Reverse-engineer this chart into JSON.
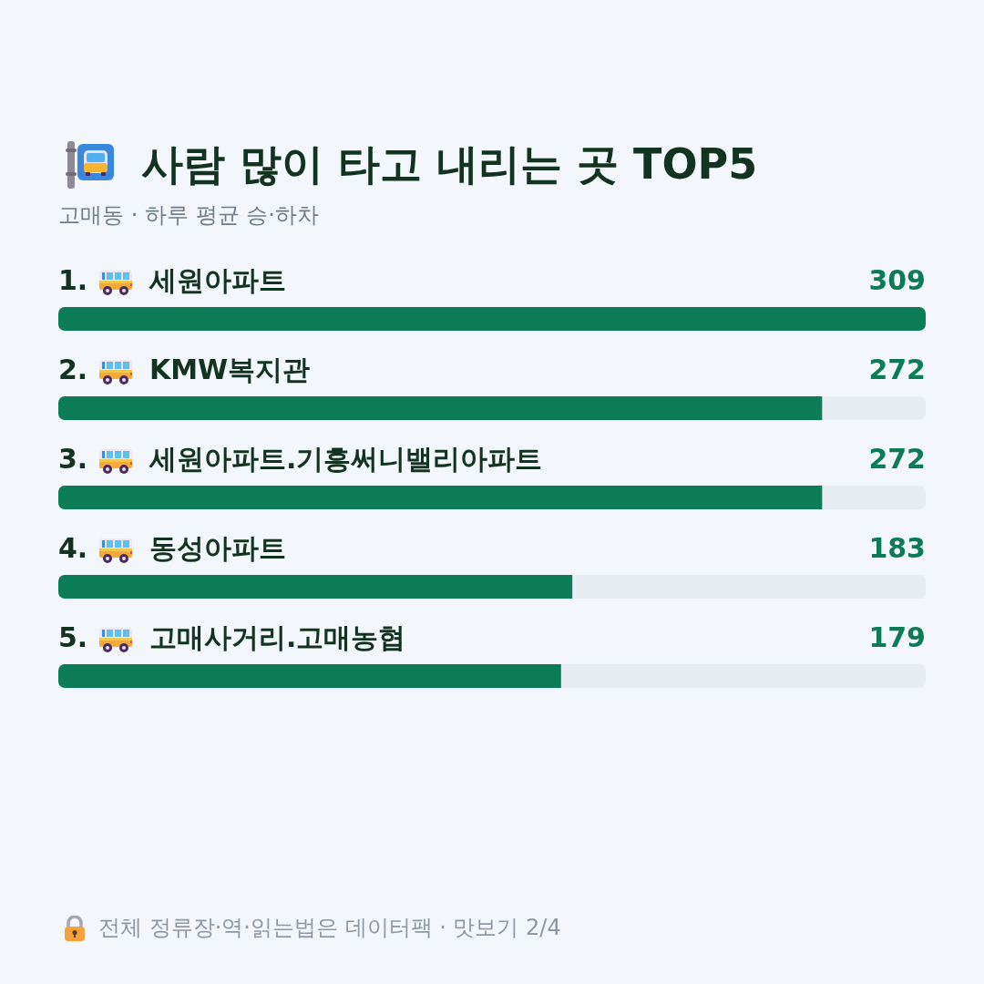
{
  "chart_data": {
    "type": "bar",
    "title": "사람 많이 타고 내리는 곳 TOP5",
    "subtitle": "고매동 · 하루 평균 승·하차",
    "categories": [
      "1. 세원아파트",
      "2. KMW복지관",
      "3. 세원아파트.기흥써니밸리아파트",
      "4. 동성아파트",
      "5. 고매사거리.고매농협"
    ],
    "values": [
      309,
      272,
      272,
      183,
      179
    ],
    "color": "#0b7c55",
    "orientation": "horizontal",
    "xlim": [
      0,
      309
    ],
    "tick_labels": "y",
    "data_labels": true,
    "annotations": [
      "전체 정류장·역·읽는법은 데이터팩 · 맛보기 2/4"
    ]
  }
}
